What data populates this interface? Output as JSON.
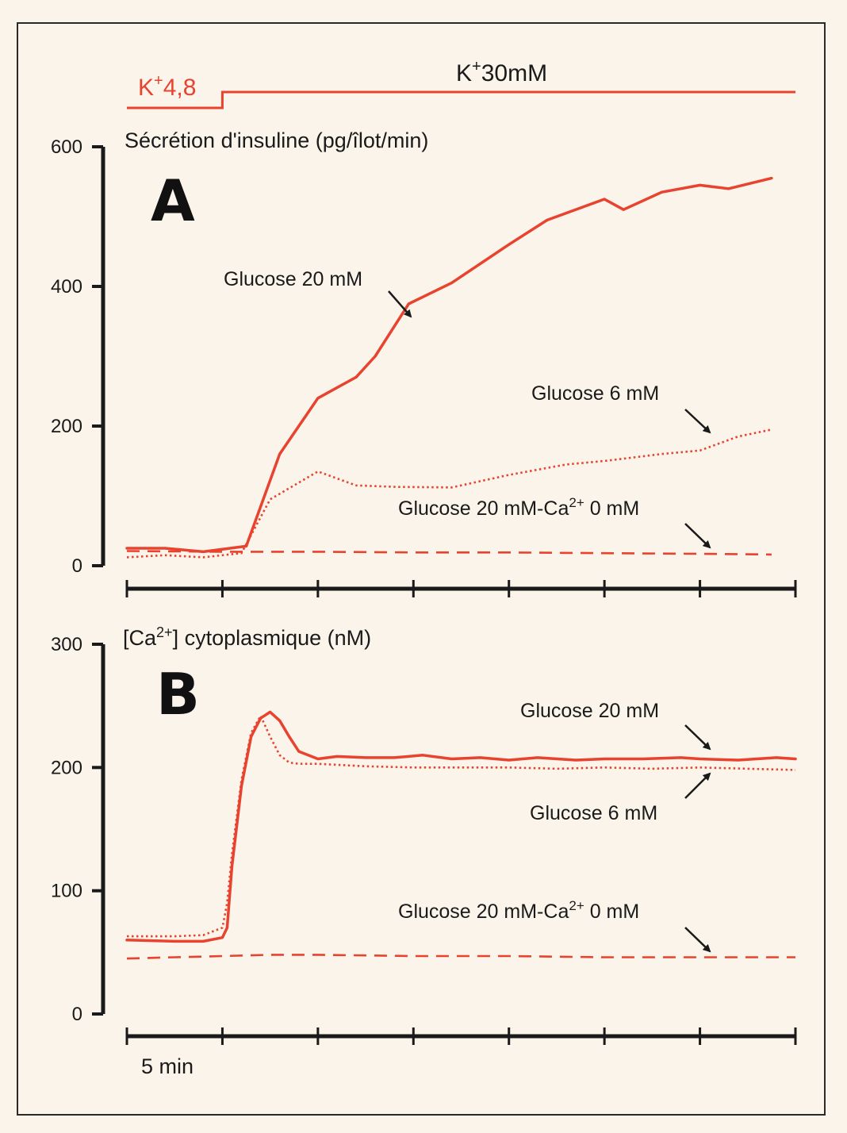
{
  "colors": {
    "background": "#faf4ea",
    "frame": "#2a2a2a",
    "axis": "#1a1a1a",
    "accent": "#e8432f",
    "text": "#1a1a1a"
  },
  "stimulus": {
    "low_label": "K",
    "low_sup": "+",
    "low_value": "4,8",
    "high_label": "K",
    "high_sup": "+",
    "high_value": "30mM",
    "step_time": 1,
    "t_start": 0,
    "t_end": 7
  },
  "time_axis": {
    "min": 0,
    "max": 7,
    "ticks": [
      0,
      1,
      2,
      3,
      4,
      5,
      6,
      7
    ],
    "scale_label": "5 min"
  },
  "chart_data": [
    {
      "type": "line",
      "panel": "A",
      "title": "Sécrétion d'insuline (pg/îlot/min)",
      "xlabel": "",
      "ylabel": "Sécrétion d'insuline (pg/îlot/min)",
      "ylim": [
        0,
        600
      ],
      "yticks": [
        "0",
        "200",
        "400",
        "600"
      ],
      "series": [
        {
          "name": "Glucose 20 mM",
          "style": "solid",
          "label": "Glucose 20 mM",
          "x": [
            0,
            0.4,
            0.8,
            1.25,
            1.6,
            2.0,
            2.4,
            2.6,
            2.95,
            3.4,
            4.0,
            4.4,
            5.0,
            5.2,
            5.6,
            6.0,
            6.3,
            6.75
          ],
          "y": [
            25,
            25,
            20,
            28,
            160,
            240,
            270,
            300,
            375,
            405,
            460,
            495,
            525,
            510,
            535,
            545,
            540,
            555
          ]
        },
        {
          "name": "Glucose 6 mM",
          "style": "dotted",
          "label": "Glucose 6 mM",
          "x": [
            0,
            0.4,
            0.8,
            1.2,
            1.5,
            2.0,
            2.4,
            2.8,
            3.4,
            4.0,
            4.6,
            5.0,
            5.6,
            6.0,
            6.4,
            6.75
          ],
          "y": [
            12,
            15,
            12,
            18,
            95,
            135,
            115,
            113,
            112,
            130,
            145,
            150,
            160,
            165,
            185,
            195
          ]
        },
        {
          "name": "Glucose 20 mM-Ca2+ 0 mM",
          "style": "dashed",
          "label": "Glucose 20 mM-Ca",
          "label_sup": "2+",
          "label_tail": " 0 mM",
          "x": [
            0,
            1,
            2,
            3,
            4,
            5,
            6,
            6.75
          ],
          "y": [
            21,
            20,
            20,
            19,
            19,
            18,
            17,
            16
          ]
        }
      ]
    },
    {
      "type": "line",
      "panel": "B",
      "title": "[Ca2+] cytoplasmique (nM)",
      "title_pre": "[Ca",
      "title_sup": "2+",
      "title_post": "] cytoplasmique (nM)",
      "xlabel": "5 min",
      "ylabel": "[Ca2+] cytoplasmique (nM)",
      "ylim": [
        0,
        300
      ],
      "yticks": [
        "0",
        "100",
        "200",
        "300"
      ],
      "series": [
        {
          "name": "Glucose 20 mM",
          "style": "solid",
          "label": "Glucose 20 mM",
          "x": [
            0,
            0.5,
            0.8,
            1.0,
            1.05,
            1.1,
            1.2,
            1.3,
            1.4,
            1.5,
            1.6,
            1.7,
            1.8,
            2.0,
            2.2,
            2.5,
            2.8,
            3.1,
            3.4,
            3.7,
            4.0,
            4.3,
            4.7,
            5.0,
            5.4,
            5.8,
            6.0,
            6.4,
            6.8,
            7.0
          ],
          "y": [
            60,
            59,
            59,
            62,
            70,
            120,
            185,
            225,
            240,
            245,
            238,
            225,
            213,
            207,
            209,
            208,
            208,
            210,
            207,
            208,
            206,
            208,
            206,
            207,
            207,
            208,
            207,
            206,
            208,
            207
          ]
        },
        {
          "name": "Glucose 6 mM",
          "style": "dotted",
          "label": "Glucose 6 mM",
          "x": [
            0,
            0.5,
            0.8,
            1.0,
            1.05,
            1.1,
            1.2,
            1.3,
            1.4,
            1.5,
            1.6,
            1.7,
            1.8,
            2.0,
            2.5,
            3.0,
            3.5,
            4.0,
            4.5,
            5.0,
            5.5,
            6.0,
            6.5,
            7.0
          ],
          "y": [
            63,
            63,
            64,
            70,
            90,
            130,
            190,
            228,
            242,
            225,
            210,
            204,
            203,
            203,
            201,
            200,
            200,
            200,
            199,
            200,
            199,
            200,
            199,
            198
          ]
        },
        {
          "name": "Glucose 20 mM-Ca2+ 0 mM",
          "style": "dashed",
          "label": "Glucose 20 mM-Ca",
          "label_sup": "2+",
          "label_tail": " 0 mM",
          "x": [
            0,
            0.5,
            1,
            1.5,
            2,
            3,
            4,
            5,
            6,
            7
          ],
          "y": [
            45,
            46,
            47,
            48,
            48,
            47,
            47,
            46,
            46,
            46
          ]
        }
      ]
    }
  ]
}
